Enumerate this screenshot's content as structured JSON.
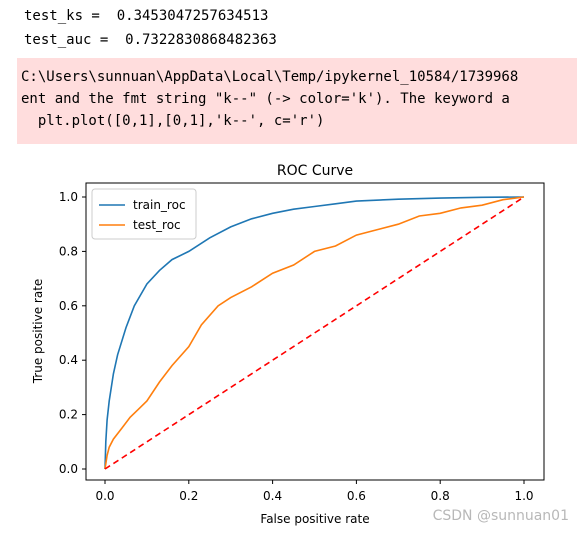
{
  "output": {
    "line1": "test_ks =  0.3453047257634513",
    "line2": "test_auc =  0.7322830868482363"
  },
  "warning": {
    "line1": "C:\\Users\\sunnuan\\AppData\\Local\\Temp/ipykernel_10584/1739968",
    "line2": "ent and the fmt string \"k--\" (-> color='k'). The keyword a",
    "line3": "  plt.plot([0,1],[0,1],'k--', c='r')"
  },
  "chart_data": {
    "type": "line",
    "title": "ROC Curve",
    "xlabel": "False positive rate",
    "ylabel": "True positive rate",
    "xlim": [
      0,
      1
    ],
    "ylim": [
      0,
      1
    ],
    "xticks": [
      "0.0",
      "0.2",
      "0.4",
      "0.6",
      "0.8",
      "1.0"
    ],
    "yticks": [
      "0.0",
      "0.2",
      "0.4",
      "0.6",
      "0.8",
      "1.0"
    ],
    "legend_position": "top-left",
    "grid": false,
    "series": [
      {
        "name": "train_roc",
        "color": "#1f77b4",
        "style": "solid",
        "x": [
          0,
          0.002,
          0.005,
          0.01,
          0.02,
          0.03,
          0.05,
          0.07,
          0.1,
          0.13,
          0.16,
          0.2,
          0.25,
          0.3,
          0.35,
          0.4,
          0.45,
          0.5,
          0.55,
          0.6,
          0.7,
          0.8,
          0.9,
          1.0
        ],
        "y": [
          0,
          0.1,
          0.18,
          0.25,
          0.35,
          0.42,
          0.52,
          0.6,
          0.68,
          0.73,
          0.77,
          0.8,
          0.85,
          0.89,
          0.92,
          0.94,
          0.955,
          0.965,
          0.975,
          0.985,
          0.992,
          0.996,
          0.999,
          1.0
        ]
      },
      {
        "name": "test_roc",
        "color": "#ff7f0e",
        "style": "solid",
        "x": [
          0,
          0.005,
          0.01,
          0.02,
          0.04,
          0.06,
          0.08,
          0.1,
          0.13,
          0.16,
          0.2,
          0.23,
          0.27,
          0.3,
          0.35,
          0.4,
          0.45,
          0.5,
          0.55,
          0.6,
          0.65,
          0.7,
          0.75,
          0.8,
          0.85,
          0.9,
          0.95,
          1.0
        ],
        "y": [
          0,
          0.05,
          0.08,
          0.11,
          0.15,
          0.19,
          0.22,
          0.25,
          0.32,
          0.38,
          0.45,
          0.53,
          0.6,
          0.63,
          0.67,
          0.72,
          0.75,
          0.8,
          0.82,
          0.86,
          0.88,
          0.9,
          0.93,
          0.94,
          0.96,
          0.97,
          0.99,
          1.0
        ]
      },
      {
        "name": "",
        "color": "#ff0000",
        "style": "dashed",
        "x": [
          0,
          1
        ],
        "y": [
          0,
          1
        ]
      }
    ]
  },
  "watermark": "CSDN @sunnuan01"
}
